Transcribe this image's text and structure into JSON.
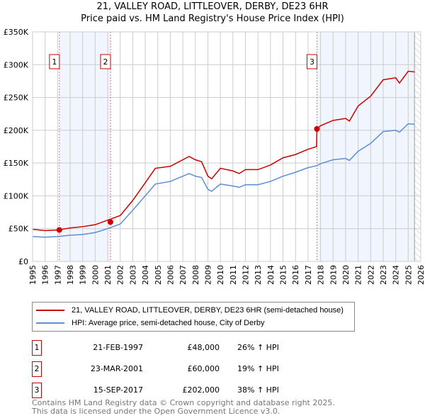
{
  "chart_data": {
    "type": "line",
    "title": "21, VALLEY ROAD, LITTLEOVER, DERBY, DE23 6HR",
    "subtitle": "Price paid vs. HM Land Registry's House Price Index (HPI)",
    "xlim": [
      1995,
      2026
    ],
    "ylim": [
      0,
      350000
    ],
    "yticks": [
      0,
      50000,
      100000,
      150000,
      200000,
      250000,
      300000,
      350000
    ],
    "ytick_labels": [
      "£0",
      "£50K",
      "£100K",
      "£150K",
      "£200K",
      "£250K",
      "£300K",
      "£350K"
    ],
    "xticks": [
      "1995",
      "1996",
      "1997",
      "1998",
      "1999",
      "2000",
      "2001",
      "2002",
      "2003",
      "2004",
      "2005",
      "2006",
      "2007",
      "2008",
      "2009",
      "2010",
      "2011",
      "2012",
      "2013",
      "2014",
      "2015",
      "2016",
      "2017",
      "2018",
      "2019",
      "2020",
      "2021",
      "2022",
      "2023",
      "2024",
      "2025",
      "2026"
    ],
    "grid": true,
    "series": [
      {
        "name": "21, VALLEY ROAD, LITTLEOVER, DERBY, DE23 6HR (semi-detached house)",
        "color": "#cc0000",
        "x": [
          1995,
          1996,
          1997,
          1998,
          1999,
          2000,
          2001,
          2002,
          2003,
          2004,
          2004.8,
          2006,
          2007,
          2007.5,
          2008,
          2008.5,
          2009,
          2009.3,
          2010,
          2011,
          2011.5,
          2012,
          2013,
          2014,
          2015,
          2016,
          2017,
          2017.68,
          2017.71,
          2018,
          2019,
          2020,
          2020.3,
          2021,
          2022,
          2023,
          2024,
          2024.3,
          2025,
          2025.5
        ],
        "y": [
          49000,
          47000,
          48000,
          51000,
          53000,
          56000,
          63000,
          70000,
          93000,
          120000,
          142000,
          145000,
          155000,
          160000,
          155000,
          152000,
          130000,
          126000,
          142000,
          138000,
          134000,
          140000,
          140000,
          147000,
          158000,
          163000,
          171000,
          175000,
          202000,
          207000,
          215000,
          218000,
          214000,
          237000,
          252000,
          277000,
          280000,
          272000,
          290000,
          289000
        ]
      },
      {
        "name": "HPI: Average price, semi-detached house, City of Derby",
        "color": "#5b8fd4",
        "x": [
          1995,
          1996,
          1997,
          1998,
          1999,
          2000,
          2001,
          2002,
          2003,
          2004,
          2004.8,
          2006,
          2007,
          2007.5,
          2008,
          2008.5,
          2009,
          2009.3,
          2010,
          2011,
          2011.5,
          2012,
          2013,
          2014,
          2015,
          2016,
          2017,
          2017.7,
          2018,
          2019,
          2020,
          2020.3,
          2021,
          2022,
          2023,
          2024,
          2024.3,
          2025,
          2025.5
        ],
        "y": [
          38000,
          37000,
          38000,
          40000,
          41000,
          44000,
          50000,
          57000,
          78000,
          100000,
          118000,
          122000,
          130000,
          134000,
          130000,
          128000,
          110000,
          107000,
          118000,
          115000,
          113000,
          117000,
          117000,
          122000,
          130000,
          136000,
          143000,
          146000,
          149000,
          155000,
          157000,
          154000,
          168000,
          180000,
          198000,
          200000,
          197000,
          210000,
          209000
        ]
      }
    ],
    "sales": [
      {
        "label": "1",
        "x": 1997.14,
        "y": 48000
      },
      {
        "label": "2",
        "x": 2001.22,
        "y": 60000
      },
      {
        "label": "3",
        "x": 2017.71,
        "y": 202000
      }
    ],
    "shaded": [
      [
        1997.14,
        2001.22
      ],
      [
        2017.71,
        2025.5
      ]
    ],
    "forecast_start": 2025.5
  },
  "legend": {
    "property": "21, VALLEY ROAD, LITTLEOVER, DERBY, DE23 6HR (semi-detached house)",
    "hpi": "HPI: Average price, semi-detached house, City of Derby"
  },
  "sales_table": [
    {
      "num": "1",
      "date": "21-FEB-1997",
      "price": "£48,000",
      "hpi": "26% ↑ HPI"
    },
    {
      "num": "2",
      "date": "23-MAR-2001",
      "price": "£60,000",
      "hpi": "19% ↑ HPI"
    },
    {
      "num": "3",
      "date": "15-SEP-2017",
      "price": "£202,000",
      "hpi": "38% ↑ HPI"
    }
  ],
  "footer": {
    "line1": "Contains HM Land Registry data © Crown copyright and database right 2025.",
    "line2": "This data is licensed under the Open Government Licence v3.0."
  }
}
